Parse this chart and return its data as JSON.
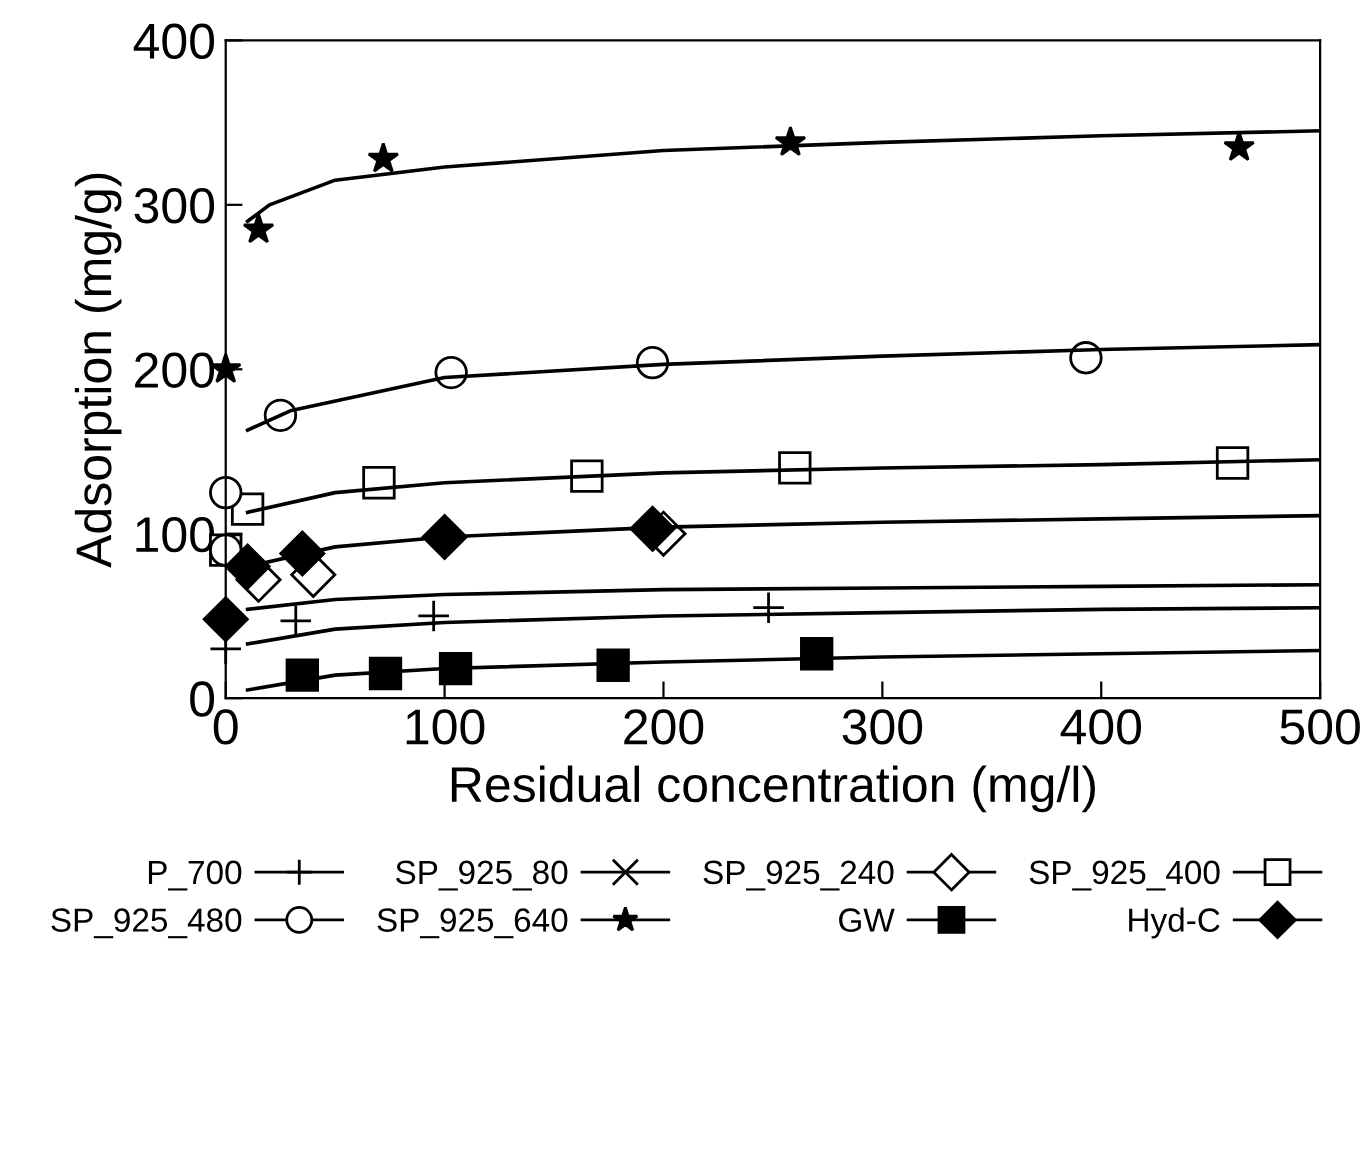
{
  "chart_data": {
    "type": "scatter",
    "xlabel": "Residual concentration (mg/l)",
    "ylabel": "Adsorption (mg/g)",
    "xlim": [
      0,
      500
    ],
    "ylim": [
      0,
      400
    ],
    "xticks": [
      0,
      100,
      200,
      300,
      400,
      500
    ],
    "yticks": [
      0,
      100,
      200,
      300,
      400
    ],
    "grid": false,
    "legend": "bottom",
    "series": [
      {
        "name": "P_700",
        "color": "#000000",
        "marker": "cross",
        "line_style": "solid",
        "x": [
          0,
          32,
          95,
          248
        ],
        "values": [
          30,
          47,
          50,
          55
        ]
      },
      {
        "name": "SP_925_80",
        "color": "#000000",
        "marker": "x",
        "line_style": "solid"
      },
      {
        "name": "SP_925_240",
        "color": "#ffffff",
        "marker": "diamond",
        "line_style": "solid",
        "x": [
          15,
          40,
          200
        ],
        "values": [
          72,
          75,
          100
        ]
      },
      {
        "name": "SP_925_400",
        "color": "#ffffff",
        "marker": "square",
        "line_style": "solid",
        "x": [
          0,
          10,
          70,
          165,
          260,
          460
        ],
        "values": [
          90,
          115,
          131,
          135,
          140,
          143
        ]
      },
      {
        "name": "SP_925_480",
        "color": "#ffffff",
        "marker": "circle",
        "line_style": "solid",
        "x": [
          0,
          0,
          25,
          103,
          195,
          393
        ],
        "values": [
          90,
          125,
          172,
          198,
          204,
          207
        ]
      },
      {
        "name": "SP_925_640",
        "color": "#000000",
        "marker": "star",
        "line_style": "solid",
        "x": [
          0,
          15,
          72,
          258,
          463
        ],
        "values": [
          200,
          285,
          328,
          338,
          335
        ]
      },
      {
        "name": "GW",
        "color": "#000000",
        "marker": "square",
        "line_style": "solid",
        "x": [
          35,
          73,
          105,
          177,
          270
        ],
        "values": [
          14,
          15,
          18,
          20,
          27
        ]
      },
      {
        "name": "Hyd-C",
        "color": "#000000",
        "marker": "diamond",
        "line_style": "solid",
        "x": [
          0,
          10,
          35,
          100,
          195
        ],
        "values": [
          48,
          80,
          88,
          98,
          103
        ]
      },
      {
        "type": "line",
        "color": "#000000",
        "x": [
          10,
          20,
          50,
          100,
          200,
          300,
          400,
          500
        ],
        "values": [
          290,
          300,
          315,
          323,
          333,
          338,
          342,
          345
        ]
      },
      {
        "type": "line",
        "color": "#000000",
        "x": [
          10,
          30,
          100,
          200,
          300,
          400,
          500
        ],
        "values": [
          163,
          175,
          195,
          203,
          208,
          212,
          215
        ]
      },
      {
        "type": "line",
        "color": "#000000",
        "x": [
          10,
          50,
          100,
          200,
          300,
          400,
          500
        ],
        "values": [
          113,
          125,
          131,
          137,
          140,
          142,
          145
        ]
      },
      {
        "type": "line",
        "color": "#000000",
        "x": [
          10,
          50,
          100,
          200,
          300,
          400,
          500
        ],
        "values": [
          80,
          92,
          98,
          104,
          107,
          109,
          111
        ]
      },
      {
        "type": "line",
        "color": "#000000",
        "x": [
          10,
          50,
          100,
          200,
          300,
          400,
          500
        ],
        "values": [
          54,
          60,
          63,
          66,
          67,
          68,
          69
        ]
      },
      {
        "type": "line",
        "color": "#000000",
        "x": [
          10,
          50,
          100,
          200,
          300,
          400,
          500
        ],
        "values": [
          33,
          42,
          46,
          50,
          52,
          54,
          55
        ]
      },
      {
        "type": "line",
        "color": "#000000",
        "x": [
          10,
          50,
          100,
          200,
          300,
          400,
          500
        ],
        "values": [
          5,
          14,
          18,
          22,
          25,
          27,
          29
        ]
      }
    ]
  }
}
